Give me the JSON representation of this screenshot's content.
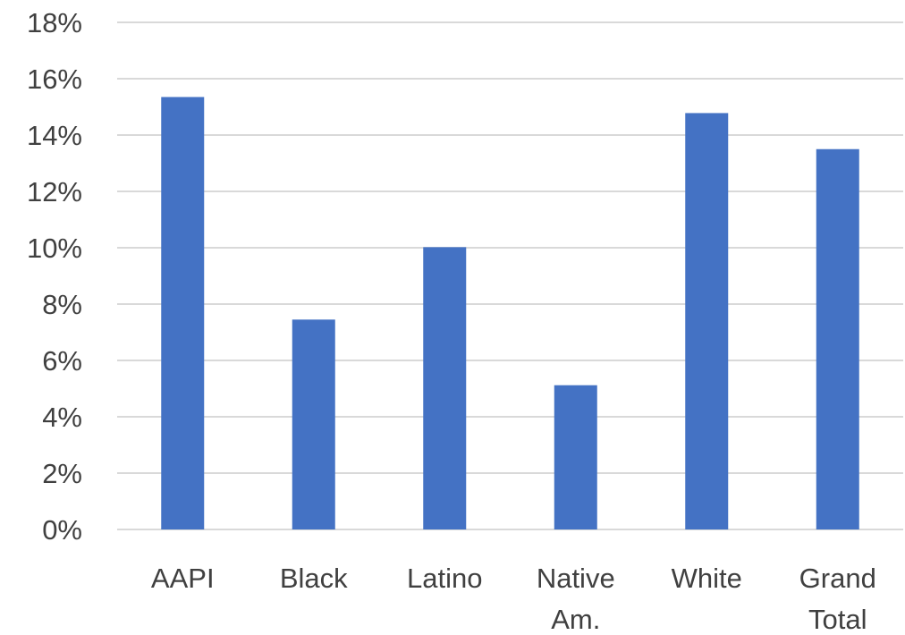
{
  "chart_data": {
    "type": "bar",
    "categories": [
      [
        "AAPI"
      ],
      [
        "Black"
      ],
      [
        "Latino"
      ],
      [
        "Native",
        "Am."
      ],
      [
        "White"
      ],
      [
        "Grand",
        "Total"
      ]
    ],
    "values": [
      15.35,
      7.45,
      10.02,
      5.12,
      14.78,
      13.5
    ],
    "ylim": [
      0,
      18
    ],
    "ytick_step": 2,
    "ytick_format": "%",
    "grid": true,
    "legend": "none",
    "bar_color": "#4472C4",
    "grid_color": "#D9D9D9",
    "text_color": "#404040"
  }
}
